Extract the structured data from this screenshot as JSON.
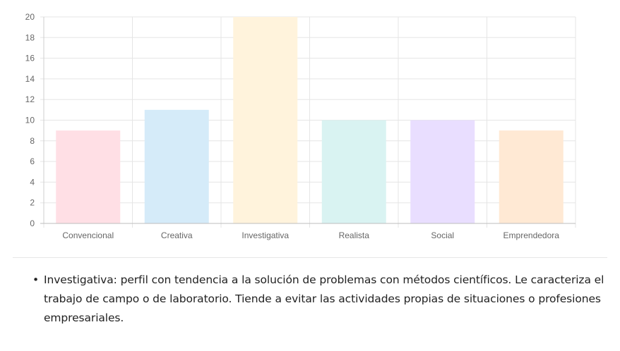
{
  "chart_data": {
    "type": "bar",
    "categories": [
      "Convencional",
      "Creativa",
      "Investigativa",
      "Realista",
      "Social",
      "Emprendedora"
    ],
    "values": [
      9,
      11,
      20,
      10,
      10,
      9
    ],
    "colors": [
      "#ffdfe5",
      "#d5ebf9",
      "#fff3dc",
      "#d9f3f2",
      "#e9deff",
      "#ffe9d4"
    ],
    "ylim": [
      0,
      20
    ],
    "yticks": [
      0,
      2,
      4,
      6,
      8,
      10,
      12,
      14,
      16,
      18,
      20
    ],
    "grid": true
  },
  "description": {
    "bullet": "•",
    "text": "Investigativa: perfil con tendencia a la solución de problemas con métodos científicos. Le caracteriza el trabajo de campo o de laboratorio. Tiende a evitar las actividades propias de situaciones o profesiones empresariales."
  }
}
